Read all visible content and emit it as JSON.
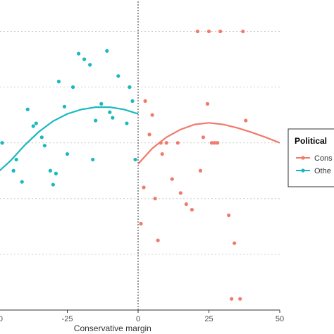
{
  "chart_data": {
    "type": "scatter",
    "title": "",
    "xlabel": "Conservative margin",
    "ylabel": "",
    "xlim": [
      -50,
      50
    ],
    "ylim": [
      -1,
      4.5
    ],
    "x_ticks": [
      -25,
      0,
      25,
      50
    ],
    "x_tick_labels": [
      "-25",
      "0",
      "25",
      "50"
    ],
    "partial_left_tick": "0",
    "cutoff_line_x": 0,
    "grid": "horizontal dotted",
    "legend": {
      "title": "Political",
      "placement": "right",
      "entries": [
        "Cons",
        "Othe"
      ]
    },
    "series": [
      {
        "name": "Othe",
        "color": "#1ab8c0",
        "points": [
          [
            -48,
            2
          ],
          [
            -44,
            1.5
          ],
          [
            -43,
            1.7
          ],
          [
            -41,
            1.3
          ],
          [
            -39,
            2.6
          ],
          [
            -37,
            2.3
          ],
          [
            -36,
            2.35
          ],
          [
            -34,
            2.1
          ],
          [
            -33,
            1.95
          ],
          [
            -31,
            1.5
          ],
          [
            -30,
            1.25
          ],
          [
            -29,
            1.45
          ],
          [
            -28,
            3.1
          ],
          [
            -26,
            2.65
          ],
          [
            -25,
            1.8
          ],
          [
            -23,
            3.0
          ],
          [
            -21,
            3.6
          ],
          [
            -19,
            3.5
          ],
          [
            -17,
            3.4
          ],
          [
            -16,
            1.7
          ],
          [
            -15,
            2.4
          ],
          [
            -13,
            2.7
          ],
          [
            -11,
            3.65
          ],
          [
            -10,
            2.55
          ],
          [
            -9,
            2.45
          ],
          [
            -7,
            3.2
          ],
          [
            -4,
            2.35
          ],
          [
            -3,
            3.0
          ],
          [
            -2,
            2.75
          ],
          [
            -1,
            1.7
          ]
        ],
        "fit": [
          [
            -50,
            1.45
          ],
          [
            -45,
            1.68
          ],
          [
            -40,
            1.96
          ],
          [
            -35,
            2.2
          ],
          [
            -30,
            2.39
          ],
          [
            -25,
            2.52
          ],
          [
            -20,
            2.6
          ],
          [
            -15,
            2.64
          ],
          [
            -10,
            2.64
          ],
          [
            -5,
            2.6
          ],
          [
            0,
            2.52
          ]
        ]
      },
      {
        "name": "Cons",
        "color": "#f07a6b",
        "points": [
          [
            1,
            0.55
          ],
          [
            2,
            1.2
          ],
          [
            2.5,
            2.75
          ],
          [
            4,
            2.15
          ],
          [
            5,
            2.5
          ],
          [
            6,
            1.0
          ],
          [
            7,
            0.25
          ],
          [
            8,
            2.0
          ],
          [
            8.5,
            1.8
          ],
          [
            10,
            2.0
          ],
          [
            12,
            1.35
          ],
          [
            14,
            2.0
          ],
          [
            15,
            1.1
          ],
          [
            17,
            0.9
          ],
          [
            19,
            0.8
          ],
          [
            21,
            4.0
          ],
          [
            22,
            1.5
          ],
          [
            23,
            2.1
          ],
          [
            24.5,
            2.7
          ],
          [
            25,
            4.0
          ],
          [
            26,
            2.0
          ],
          [
            27,
            2.0
          ],
          [
            28,
            2.0
          ],
          [
            29,
            4.0
          ],
          [
            32,
            0.7
          ],
          [
            33,
            -0.8
          ],
          [
            34,
            0.2
          ],
          [
            36,
            -0.8
          ],
          [
            37,
            4.0
          ],
          [
            38,
            2.4
          ]
        ],
        "fit": [
          [
            0,
            1.62
          ],
          [
            5,
            1.9
          ],
          [
            10,
            2.1
          ],
          [
            15,
            2.24
          ],
          [
            20,
            2.33
          ],
          [
            25,
            2.36
          ],
          [
            30,
            2.33
          ],
          [
            35,
            2.27
          ],
          [
            40,
            2.19
          ],
          [
            45,
            2.1
          ],
          [
            50,
            2.0
          ]
        ]
      }
    ]
  }
}
